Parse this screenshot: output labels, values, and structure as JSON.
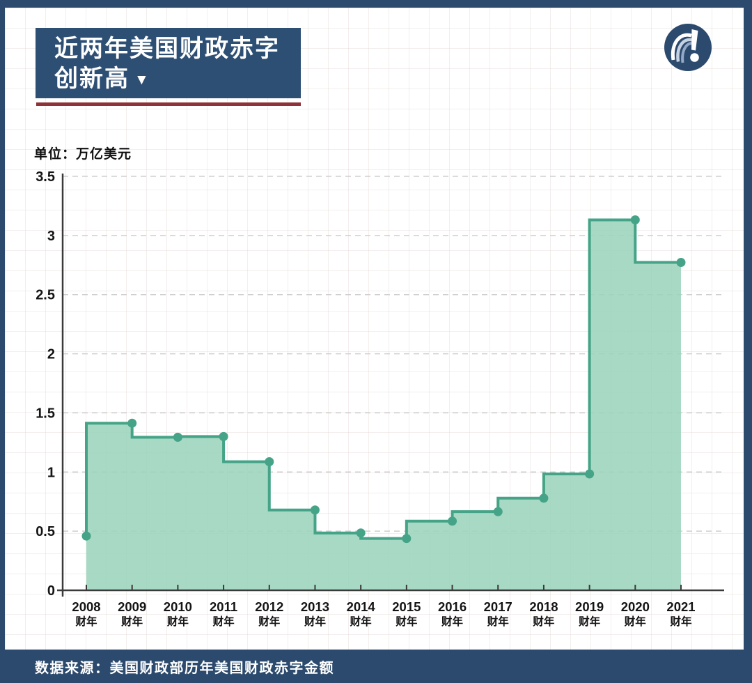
{
  "header": {
    "title_line1": "近两年美国财政赤字",
    "title_line2": "创新高",
    "arrow": "▼"
  },
  "icons": {
    "logo": "question-exclamation-swirl-logo",
    "title_arrow": "down-triangle"
  },
  "footer": {
    "source": "数据来源：美国财政部历年美国财政赤字金额"
  },
  "colors": {
    "navy": "#2b4a6d",
    "title_navy": "#2e4f74",
    "accent_red": "#8e3138",
    "line_green": "#45a487",
    "fill_green": "#9bd4bc",
    "gridline": "#cfcfcf",
    "axis": "#3a3a3a",
    "label": "#141414"
  },
  "chart_data": {
    "type": "area",
    "step": "before",
    "title": "近两年美国财政赤字创新高",
    "unit_label": "单位：万亿美元",
    "ylabel": "万亿美元",
    "x_suffix_label": "财年",
    "categories": [
      "2008",
      "2009",
      "2010",
      "2011",
      "2012",
      "2013",
      "2014",
      "2015",
      "2016",
      "2017",
      "2018",
      "2019",
      "2020",
      "2021"
    ],
    "values": [
      0.459,
      1.413,
      1.294,
      1.3,
      1.087,
      0.679,
      0.485,
      0.438,
      0.585,
      0.665,
      0.779,
      0.984,
      3.132,
      2.772
    ],
    "ylim": [
      0,
      3.5
    ],
    "yticks": [
      0,
      0.5,
      1,
      1.5,
      2,
      2.5,
      3,
      3.5
    ],
    "grid": "horizontal-dashed",
    "legend": "none",
    "markers": "circle"
  }
}
